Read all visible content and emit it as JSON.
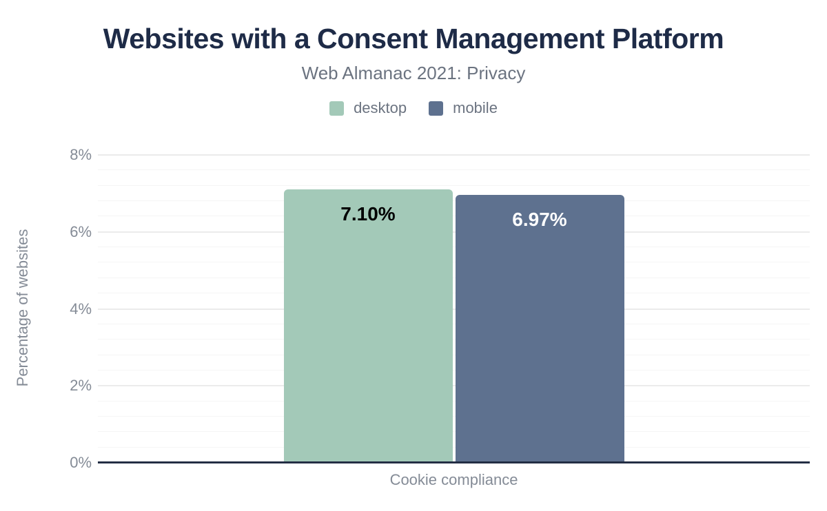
{
  "header": {
    "title": "Websites with a Consent Management Platform",
    "subtitle": "Web Almanac 2021: Privacy"
  },
  "legend": [
    {
      "label": "desktop",
      "color": "#a3c9b8"
    },
    {
      "label": "mobile",
      "color": "#5e718f"
    }
  ],
  "chart_data": {
    "type": "bar",
    "title": "Websites with a Consent Management Platform",
    "subtitle": "Web Almanac 2021: Privacy",
    "categories": [
      "Cookie compliance"
    ],
    "series": [
      {
        "name": "desktop",
        "values": [
          7.1
        ],
        "data_labels": [
          "7.10%"
        ],
        "color": "#a3c9b8",
        "label_color": "#000000"
      },
      {
        "name": "mobile",
        "values": [
          6.97
        ],
        "data_labels": [
          "6.97%"
        ],
        "color": "#5e718f",
        "label_color": "#ffffff"
      }
    ],
    "xlabel": "Cookie compliance",
    "ylabel": "Percentage of websites",
    "ylim": [
      0,
      8
    ],
    "y_ticks": [
      {
        "value": 0,
        "label": "0%"
      },
      {
        "value": 2,
        "label": "2%"
      },
      {
        "value": 4,
        "label": "4%"
      },
      {
        "value": 6,
        "label": "6%"
      },
      {
        "value": 8,
        "label": "8%"
      }
    ],
    "major_grid_step": 2,
    "minor_grid_step": 0.4,
    "grid": true,
    "legend_position": "top"
  },
  "colors": {
    "background": "#ffffff",
    "title_text": "#1e2b47",
    "secondary_text": "#6b7380",
    "axis_tick_text": "#848b96",
    "axis_line": "#232e44",
    "major_grid": "#ebebeb",
    "minor_grid": "#f5f5f5"
  }
}
